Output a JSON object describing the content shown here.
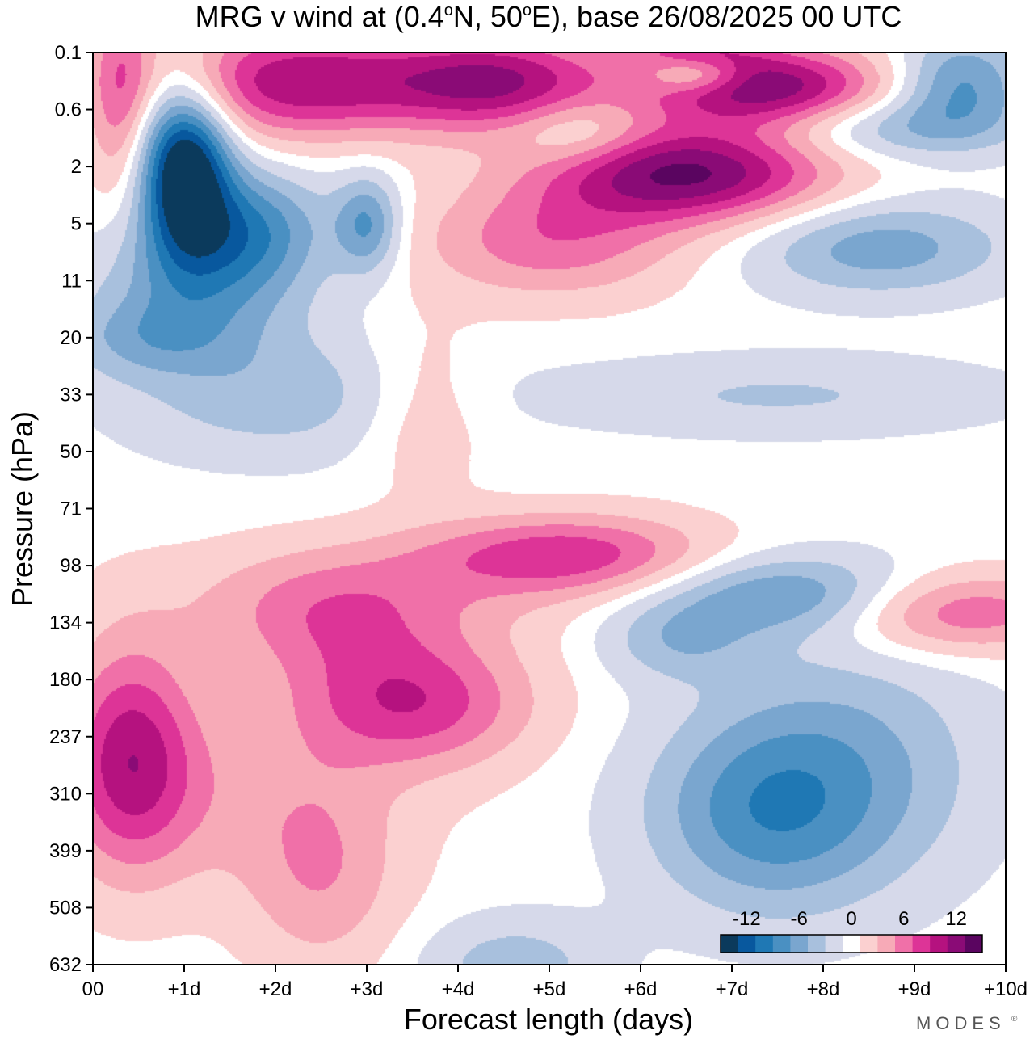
{
  "chart_data": {
    "type": "heatmap",
    "title": "MRG v wind at (0.4°N, 50°E),  base 26/08/2025  00 UTC",
    "title_parts": {
      "main": "MRG v wind at (0.4",
      "deg": "o",
      "n": "N, 50",
      "e": "E),  base 26/08/2025  00 UTC"
    },
    "xlabel": "Forecast length (days)",
    "ylabel": "Pressure (hPa)",
    "x_ticks": [
      "00",
      "+1d",
      "+2d",
      "+3d",
      "+4d",
      "+5d",
      "+6d",
      "+7d",
      "+8d",
      "+9d",
      "+10d"
    ],
    "y_ticks": [
      "0.1",
      "0.6",
      "2",
      "5",
      "11",
      "20",
      "33",
      "50",
      "71",
      "98",
      "134",
      "180",
      "237",
      "310",
      "399",
      "508",
      "632"
    ],
    "xlim": [
      0,
      10
    ],
    "colorbar": {
      "tick_labels": [
        "-12",
        "-6",
        "0",
        "6",
        "12"
      ],
      "tick_values": [
        -12,
        -6,
        0,
        6,
        12
      ],
      "levels": [
        -14,
        -12,
        -10,
        -8,
        -6,
        -4,
        -2,
        0,
        2,
        4,
        6,
        8,
        10,
        12,
        14
      ],
      "colors": [
        "#0b3a5c",
        "#08589e",
        "#1f78b4",
        "#4a90c2",
        "#7aa6cf",
        "#a8c0dd",
        "#d6d9ea",
        "#ffffff",
        "#fbd0d0",
        "#f7aab7",
        "#f070a8",
        "#dd3497",
        "#b5127f",
        "#8a0b76",
        "#5a0560"
      ]
    },
    "features": [
      {
        "x": 1.0,
        "y": 2,
        "v": -16,
        "sx": 0.35,
        "sy": 1.0
      },
      {
        "x": 1.7,
        "y": 3,
        "v": -7,
        "sx": 0.6,
        "sy": 0.7
      },
      {
        "x": 3.0,
        "y": 3,
        "v": -7,
        "sx": 0.25,
        "sy": 0.6
      },
      {
        "x": 1.2,
        "y": 4,
        "v": -6,
        "sx": 0.8,
        "sy": 0.8
      },
      {
        "x": 0.3,
        "y": 0.6,
        "v": 6,
        "sx": 0.25,
        "sy": 1.4
      },
      {
        "x": 2.2,
        "y": 0.5,
        "v": 10,
        "sx": 1.0,
        "sy": 0.7
      },
      {
        "x": 4.4,
        "y": 0.5,
        "v": 11,
        "sx": 0.9,
        "sy": 0.6
      },
      {
        "x": 7.4,
        "y": 0.6,
        "v": 12,
        "sx": 0.9,
        "sy": 0.5
      },
      {
        "x": 6.6,
        "y": 0.1,
        "v": 8,
        "sx": 0.5,
        "sy": 0.4
      },
      {
        "x": 6.6,
        "y": 0.35,
        "v": -10,
        "sx": 0.4,
        "sy": 0.25
      },
      {
        "x": 9.5,
        "y": 0.5,
        "v": -7,
        "sx": 0.5,
        "sy": 0.6
      },
      {
        "x": 8.7,
        "y": 1.3,
        "v": -5,
        "sx": 1.0,
        "sy": 0.4
      },
      {
        "x": 6.5,
        "y": 2.1,
        "v": 13,
        "sx": 1.1,
        "sy": 0.6
      },
      {
        "x": 5.0,
        "y": 3.3,
        "v": 6,
        "sx": 1.0,
        "sy": 0.7
      },
      {
        "x": 8.6,
        "y": 3.4,
        "v": -6,
        "sx": 1.0,
        "sy": 0.6
      },
      {
        "x": 5.3,
        "y": 1.4,
        "v": -4,
        "sx": 0.5,
        "sy": 0.4
      },
      {
        "x": 0.6,
        "y": 5,
        "v": -4,
        "sx": 0.7,
        "sy": 0.5
      },
      {
        "x": 2.0,
        "y": 6,
        "v": -4,
        "sx": 1.2,
        "sy": 0.8
      },
      {
        "x": 3.6,
        "y": 6.2,
        "v": 3,
        "sx": 0.5,
        "sy": 1.0
      },
      {
        "x": 7.5,
        "y": 6.0,
        "v": -3,
        "sx": 1.8,
        "sy": 0.5
      },
      {
        "x": 3.0,
        "y": 9.5,
        "v": 3,
        "sx": 1.5,
        "sy": 0.7
      },
      {
        "x": 5.2,
        "y": 8.8,
        "v": 8,
        "sx": 1.1,
        "sy": 0.5
      },
      {
        "x": 7.6,
        "y": 9.5,
        "v": -7,
        "sx": 1.0,
        "sy": 0.5
      },
      {
        "x": 9.4,
        "y": 9.8,
        "v": 7,
        "sx": 1.0,
        "sy": 0.5
      },
      {
        "x": 2.6,
        "y": 10,
        "v": 4,
        "sx": 0.9,
        "sy": 0.8
      },
      {
        "x": 3.5,
        "y": 11.4,
        "v": 8,
        "sx": 0.9,
        "sy": 0.8
      },
      {
        "x": 0.4,
        "y": 12.3,
        "v": 9,
        "sx": 0.5,
        "sy": 1.4
      },
      {
        "x": 2.5,
        "y": 14.5,
        "v": 4,
        "sx": 0.6,
        "sy": 1.2
      },
      {
        "x": 1.5,
        "y": 13.0,
        "v": 3,
        "sx": 1.3,
        "sy": 1.2
      },
      {
        "x": 8.2,
        "y": 12.5,
        "v": -5,
        "sx": 1.1,
        "sy": 1.5
      },
      {
        "x": 7.3,
        "y": 13.4,
        "v": -6,
        "sx": 0.9,
        "sy": 1.2
      },
      {
        "x": 6.4,
        "y": 10.3,
        "v": -4,
        "sx": 0.6,
        "sy": 0.5
      },
      {
        "x": 4.6,
        "y": 16.0,
        "v": -4,
        "sx": 0.7,
        "sy": 0.6
      }
    ]
  },
  "brand": "MODES"
}
